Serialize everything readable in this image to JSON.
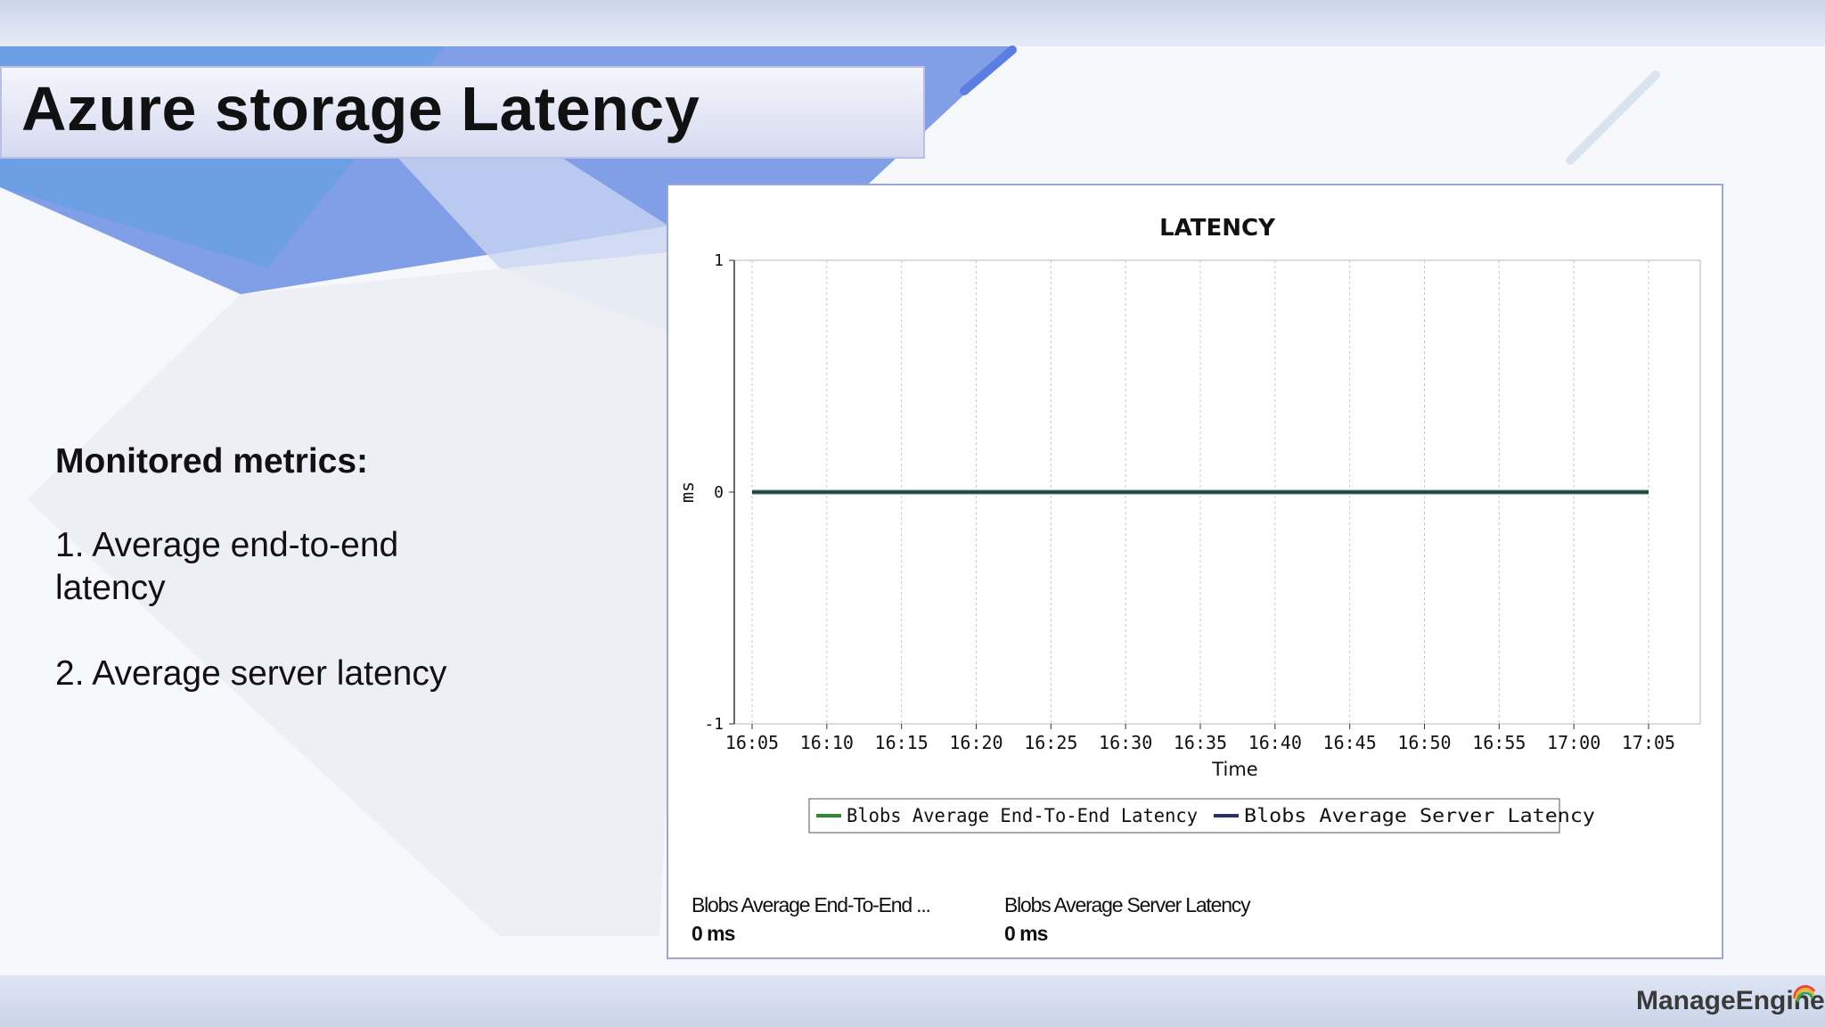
{
  "slide": {
    "title": "Azure storage Latency",
    "metrics_heading": "Monitored metrics:",
    "metrics": [
      {
        "line1": "1. Average end-to-end",
        "line2": "latency"
      },
      {
        "line1": "2. Average server latency"
      }
    ],
    "brand": "ManageEngine"
  },
  "colors": {
    "accent_blue": "#5b7fe0",
    "end_to_end_series": "#2e8b2e",
    "server_series": "#2b2f6e"
  },
  "summary": [
    {
      "label": "Blobs Average End-To-End ...",
      "value": "0 ms"
    },
    {
      "label": "Blobs Average Server Latency",
      "value": "0 ms"
    }
  ],
  "chart_data": {
    "type": "line",
    "title": "LATENCY",
    "xlabel": "Time",
    "ylabel": "ms",
    "ylim": [
      -1,
      1
    ],
    "yticks": [
      "1",
      "0",
      "-1"
    ],
    "x": [
      "16:05",
      "16:10",
      "16:15",
      "16:20",
      "16:25",
      "16:30",
      "16:35",
      "16:40",
      "16:45",
      "16:50",
      "16:55",
      "17:00",
      "17:05"
    ],
    "series": [
      {
        "name": "Blobs Average End-To-End Latency",
        "values": [
          0,
          0,
          0,
          0,
          0,
          0,
          0,
          0,
          0,
          0,
          0,
          0,
          0
        ],
        "color": "#2e8b2e"
      },
      {
        "name": "Blobs Average Server Latency",
        "values": [
          0,
          0,
          0,
          0,
          0,
          0,
          0,
          0,
          0,
          0,
          0,
          0,
          0
        ],
        "color": "#2b2f6e"
      }
    ],
    "grid": true,
    "legend": "bottom"
  }
}
